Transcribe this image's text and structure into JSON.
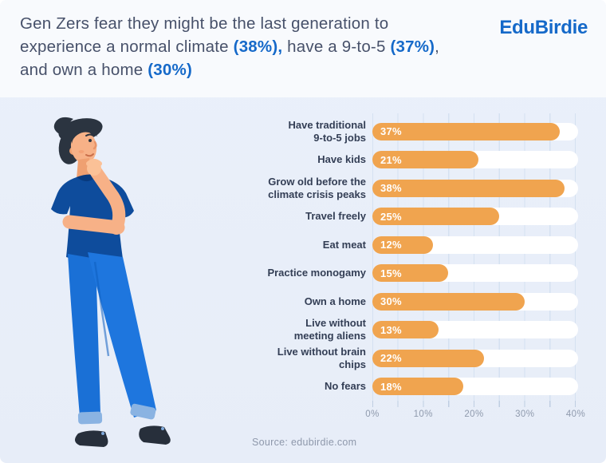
{
  "header": {
    "headline": {
      "l1": "Gen Zers fear they might be the last generation to",
      "l2a": "experience a normal climate ",
      "l2b": "(38%),",
      "l2c": " have a 9-to-5 ",
      "l2d": "(37%)",
      "l2e": ",",
      "l3a": "and own a home ",
      "l3b": "(30%)"
    },
    "logo": "EduBirdie"
  },
  "chart_data": {
    "type": "bar",
    "orientation": "horizontal",
    "title": "Gen Zers fear they might be the last generation to experience a normal climate (38%), have a 9-to-5 (37%), and own a home (30%)",
    "categories": [
      "Have traditional\n9-to-5 jobs",
      "Have kids",
      "Grow old before the\nclimate crisis peaks",
      "Travel freely",
      "Eat meat",
      "Practice monogamy",
      "Own a home",
      "Live without\nmeeting aliens",
      "Live without brain chips",
      "No fears"
    ],
    "values": [
      37,
      21,
      38,
      25,
      12,
      15,
      30,
      13,
      22,
      18
    ],
    "value_labels": [
      "37%",
      "21%",
      "38%",
      "25%",
      "12%",
      "15%",
      "30%",
      "13%",
      "22%",
      "18%"
    ],
    "x_ticks": [
      "0%",
      "10%",
      "20%",
      "30%",
      "40%"
    ],
    "xlim": [
      0,
      40
    ],
    "grid_interval": 5,
    "grid": true,
    "legend": false,
    "xlabel": "",
    "ylabel": ""
  },
  "footer": {
    "source": "Source: edubirdie.com"
  },
  "colors": {
    "header_bg": "#F8FAFD",
    "body_bg": "#E8EEF9",
    "accent_blue": "#1569C9",
    "headline_text": "#47516A",
    "category_text": "#333E55",
    "axis_text": "#8F9AAD",
    "bar_orange": "#F0A44F",
    "bar_track": "#FFFFFF",
    "gridline": "#D5E1F1"
  }
}
